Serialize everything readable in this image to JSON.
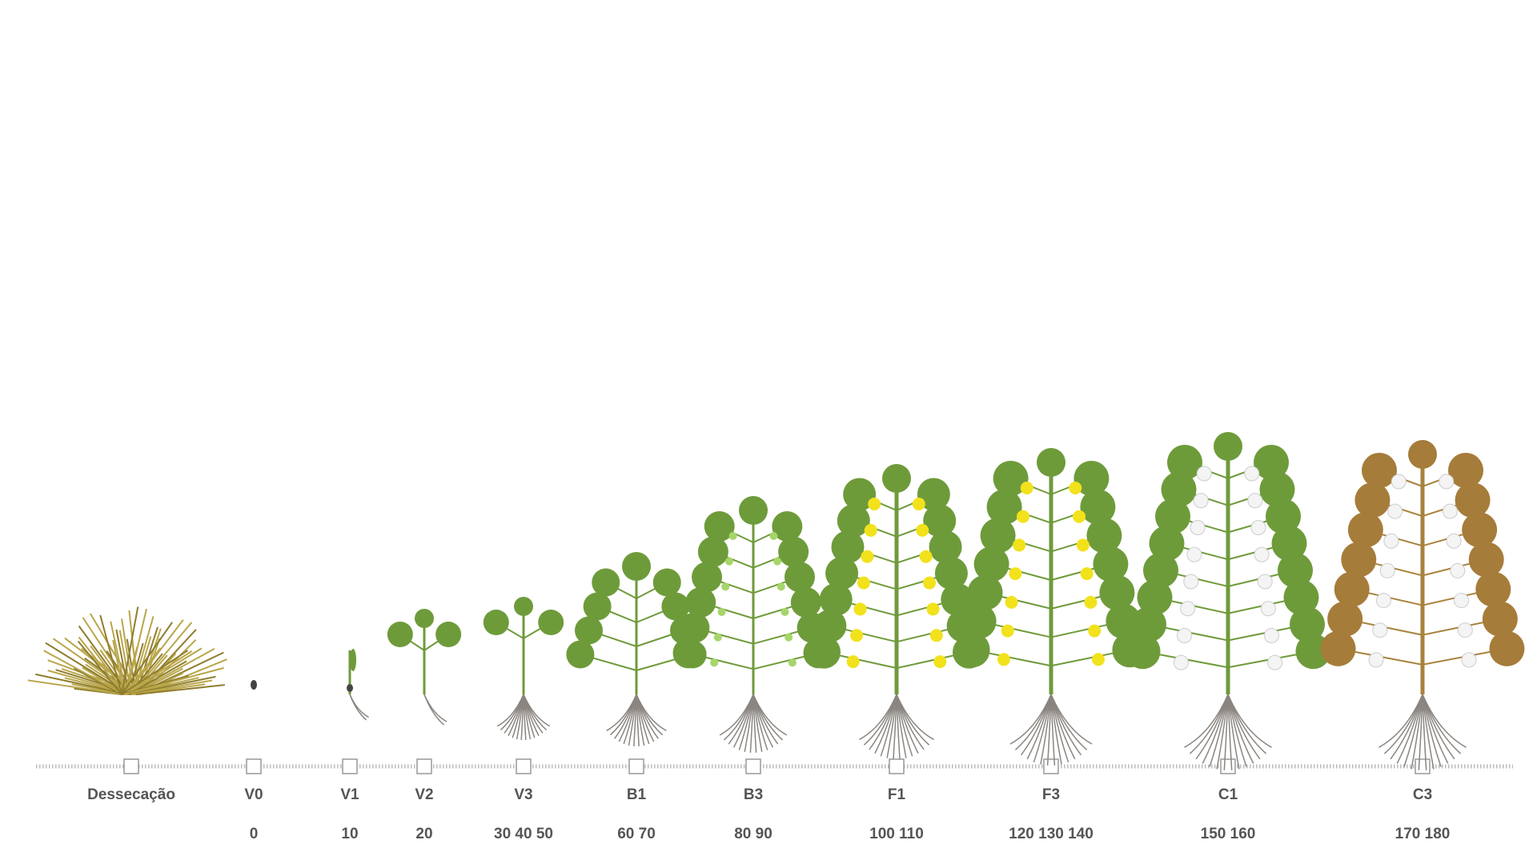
{
  "stages": [
    {
      "label": "Dessecação"
    },
    {
      "label": "V0",
      "days": "0"
    },
    {
      "label": "V1",
      "days": "10"
    },
    {
      "label": "V2",
      "days": "20"
    },
    {
      "label": "V3",
      "days": "30 40 50"
    },
    {
      "label": "B1",
      "days": "60 70"
    },
    {
      "label": "B3",
      "days": "80 90"
    },
    {
      "label": "F1",
      "days": "100 110"
    },
    {
      "label": "F3",
      "days": "120 130 140"
    },
    {
      "label": "C1",
      "days": "150 160"
    },
    {
      "label": "C3",
      "days": "170 180"
    }
  ]
}
